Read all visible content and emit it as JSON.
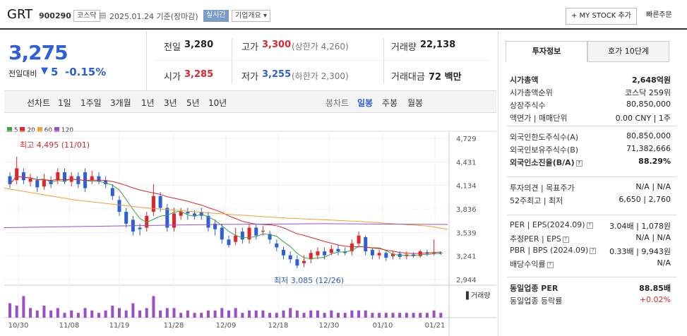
{
  "header": {
    "name": "GRT",
    "code": "900290",
    "market": "코스닥",
    "date": "2025.01.24 기준(장마감)",
    "realtime": "실시간",
    "company": "기업개요 ▾",
    "mystock": "+ MY STOCK 추가",
    "quick": "빠른주문"
  },
  "price": {
    "current": "3,275",
    "change_label": "전일대비",
    "change_arrow": "▼",
    "change": "5",
    "change_pct": "-0.15%"
  },
  "quote": {
    "prev_label": "전일",
    "prev": "3,280",
    "high_label": "고가",
    "high": "3,300",
    "high_limit": "(상한가 4,260)",
    "vol_label": "거래량",
    "vol": "22,138",
    "open_label": "시가",
    "open": "3,285",
    "low_label": "저가",
    "low": "3,255",
    "low_limit": "(하한가 2,300)",
    "amt_label": "거래대금",
    "amt": "72 백만"
  },
  "tabs": {
    "left": [
      "선차트",
      "1일",
      "1주일",
      "3개월",
      "1년",
      "3년",
      "5년",
      "10년"
    ],
    "right": [
      "봉차트",
      "일봉",
      "주봉",
      "월봉"
    ],
    "active": "일봉"
  },
  "legend": [
    {
      "label": "5",
      "color": "#3aa34b"
    },
    {
      "label": "20",
      "color": "#e4242b"
    },
    {
      "label": "60",
      "color": "#f0a030"
    },
    {
      "label": "120",
      "color": "#9a4fc8"
    }
  ],
  "chart_data": {
    "type": "candlestick",
    "y_ticks": [
      "4,729",
      "4,431",
      "4,134",
      "3,836",
      "3,539",
      "3,241",
      "2,944"
    ],
    "x_labels": [
      "10/30",
      "11/08",
      "11/19",
      "11/28",
      "12/09",
      "12/18",
      "12/30",
      "01/10",
      "01/21"
    ],
    "high_note": "최고 4,495 (11/01)",
    "low_note": "최저 3,085 (12/26)",
    "volume_label": "거래량",
    "ylim": [
      2944,
      4729
    ]
  },
  "side": {
    "tab1": "투자정보",
    "tab2": "호가 10단계",
    "rows1": [
      {
        "k": "시가총액",
        "v": "2,648억원"
      },
      {
        "k": "시가총액순위",
        "v": "코스닥 259위"
      },
      {
        "k": "상장주식수",
        "v": "80,850,000"
      },
      {
        "k": "액면가 | 매매단위",
        "v": "0.00 CNY | 1주"
      }
    ],
    "rows2": [
      {
        "k": "외국인한도주식수(A)",
        "v": "80,850,000"
      },
      {
        "k": "외국인보유주식수(B)",
        "v": "71,382,666"
      },
      {
        "k": "외국인소진율(B/A)",
        "v": "88.29%"
      }
    ],
    "rows3": [
      {
        "k": "투자의견 | 목표주가",
        "v": "N/A | N/A"
      },
      {
        "k": "52주최고 | 최저",
        "v": "6,650 | 2,760"
      }
    ],
    "rows4": [
      {
        "k": "PER | EPS(2024.09)",
        "v": "3.04배 | 1,078원"
      },
      {
        "k": "추정PER | EPS",
        "v": "N/A | N/A"
      },
      {
        "k": "PBR | BPS (2024.09)",
        "v": "0.33배 | 9,943원"
      },
      {
        "k": "배당수익률",
        "v": "N/A"
      }
    ],
    "rows5": [
      {
        "k": "동일업종 PER",
        "v": "88.85배"
      },
      {
        "k": "동일업종 등락률",
        "v": "+0.02%"
      }
    ]
  }
}
